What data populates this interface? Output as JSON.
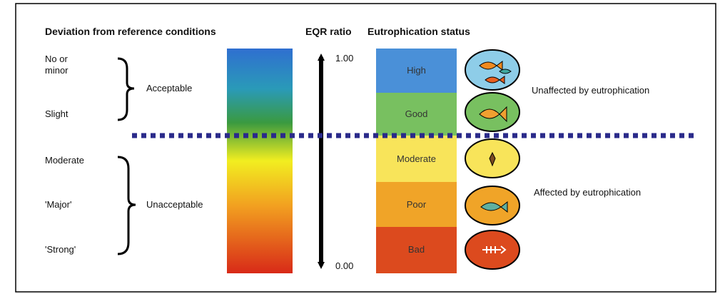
{
  "headers": {
    "deviation": "Deviation from reference conditions",
    "eqr": "EQR ratio",
    "status": "Eutrophication status"
  },
  "deviation_levels": [
    "No or minor",
    "Slight",
    "Moderate",
    "'Major'",
    "'Strong'"
  ],
  "groups": [
    "Acceptable",
    "Unacceptable"
  ],
  "eqr_ticks": [
    "1.00",
    "0.00"
  ],
  "status_classes": [
    "High",
    "Good",
    "Moderate",
    "Poor",
    "Bad"
  ],
  "effects": [
    "Unaffected by eutrophication",
    "Affected by eutrophication"
  ]
}
